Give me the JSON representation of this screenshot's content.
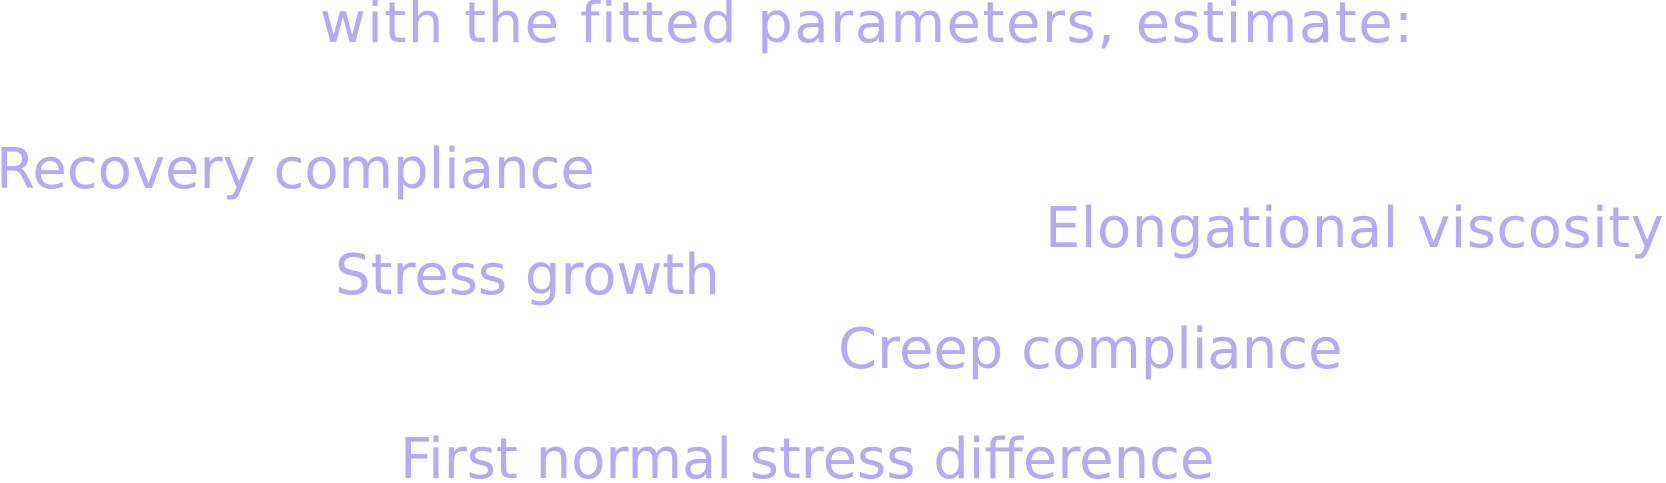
{
  "heading": "with the fitted parameters, estimate:",
  "colors": {
    "text": "#b6a9f7",
    "background": "#ffffff"
  },
  "terms": {
    "recovery_compliance": "Recovery compliance",
    "stress_growth": "Stress growth",
    "elongational_viscosity": "Elongational viscosity",
    "creep_compliance": "Creep compliance",
    "first_normal_stress_difference": "First normal stress difference"
  }
}
